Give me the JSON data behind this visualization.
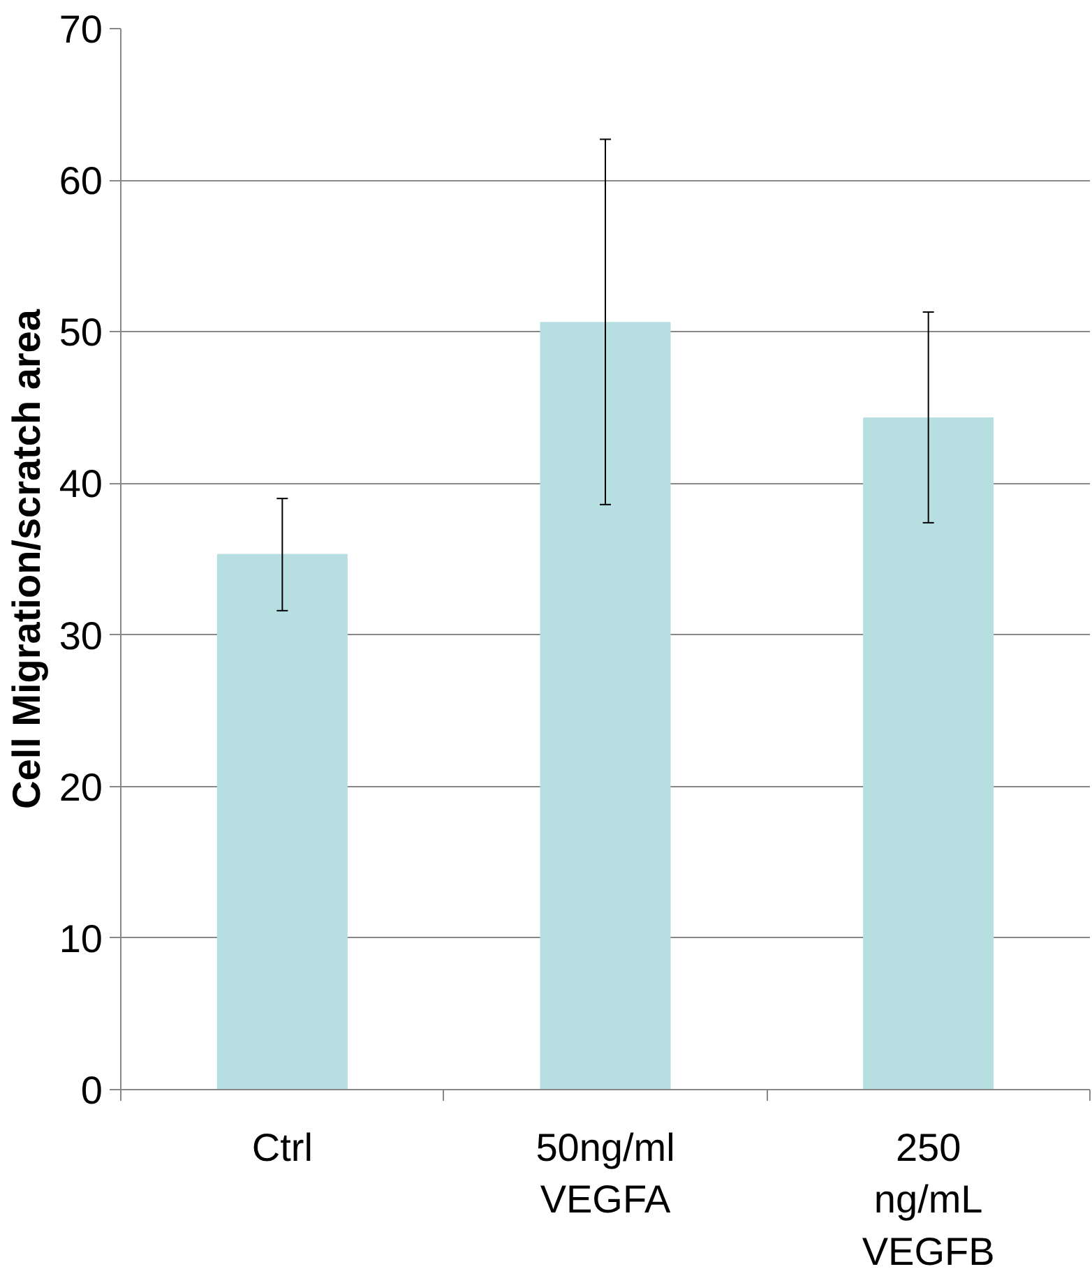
{
  "chart_data": {
    "type": "bar",
    "ylabel": "Cell Migration/scratch area",
    "categories": [
      "Ctrl",
      "50ng/ml\nVEGFA",
      "250\nng/mL\nVEGFB"
    ],
    "values": [
      35.3,
      50.6,
      44.3
    ],
    "errors": [
      [
        31.6,
        39.0
      ],
      [
        38.6,
        62.7
      ],
      [
        37.4,
        51.3
      ]
    ],
    "color": "#b7dfe1",
    "ylim": [
      0,
      70
    ],
    "yticks": [
      0,
      10,
      20,
      30,
      40,
      50,
      60,
      70
    ],
    "grid": "y"
  }
}
